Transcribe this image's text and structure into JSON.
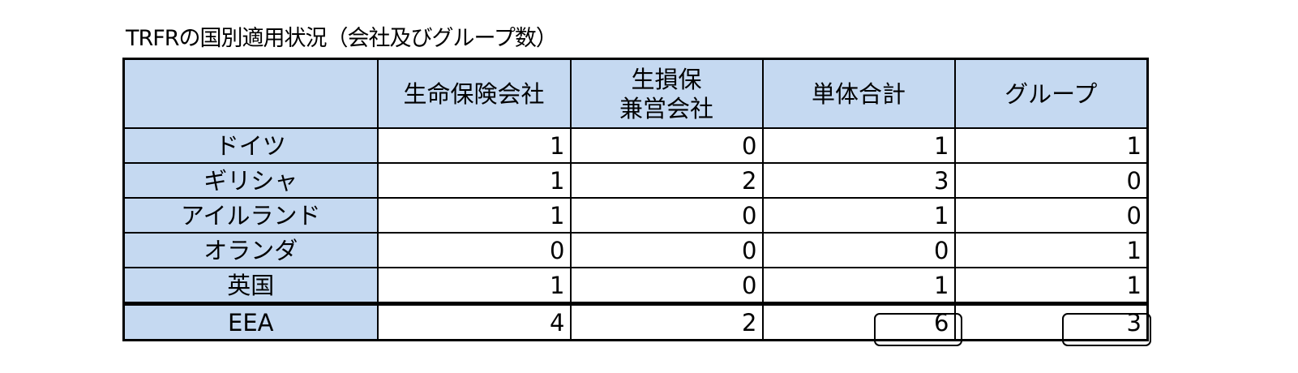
{
  "title": "TRFRの国別適用状況（会社及びグループ数）",
  "table": {
    "headers": [
      "",
      "生命保険会社",
      "生損保\n兼営会社",
      "単体合計",
      "グループ"
    ],
    "header_lines": {
      "col2_line1": "生損保",
      "col2_line2": "兼営会社"
    },
    "rows": [
      {
        "label": "ドイツ",
        "values": [
          "1",
          "0",
          "1",
          "1"
        ]
      },
      {
        "label": "ギリシャ",
        "values": [
          "1",
          "2",
          "3",
          "0"
        ]
      },
      {
        "label": "アイルランド",
        "values": [
          "1",
          "0",
          "1",
          "0"
        ]
      },
      {
        "label": "オランダ",
        "values": [
          "0",
          "0",
          "0",
          "1"
        ]
      },
      {
        "label": "英国",
        "values": [
          "1",
          "0",
          "1",
          "1"
        ]
      },
      {
        "label": "EEA",
        "values": [
          "4",
          "2",
          "6",
          "3"
        ]
      }
    ]
  },
  "colors": {
    "header_fill": "#c5d9f1",
    "border": "#000000"
  }
}
